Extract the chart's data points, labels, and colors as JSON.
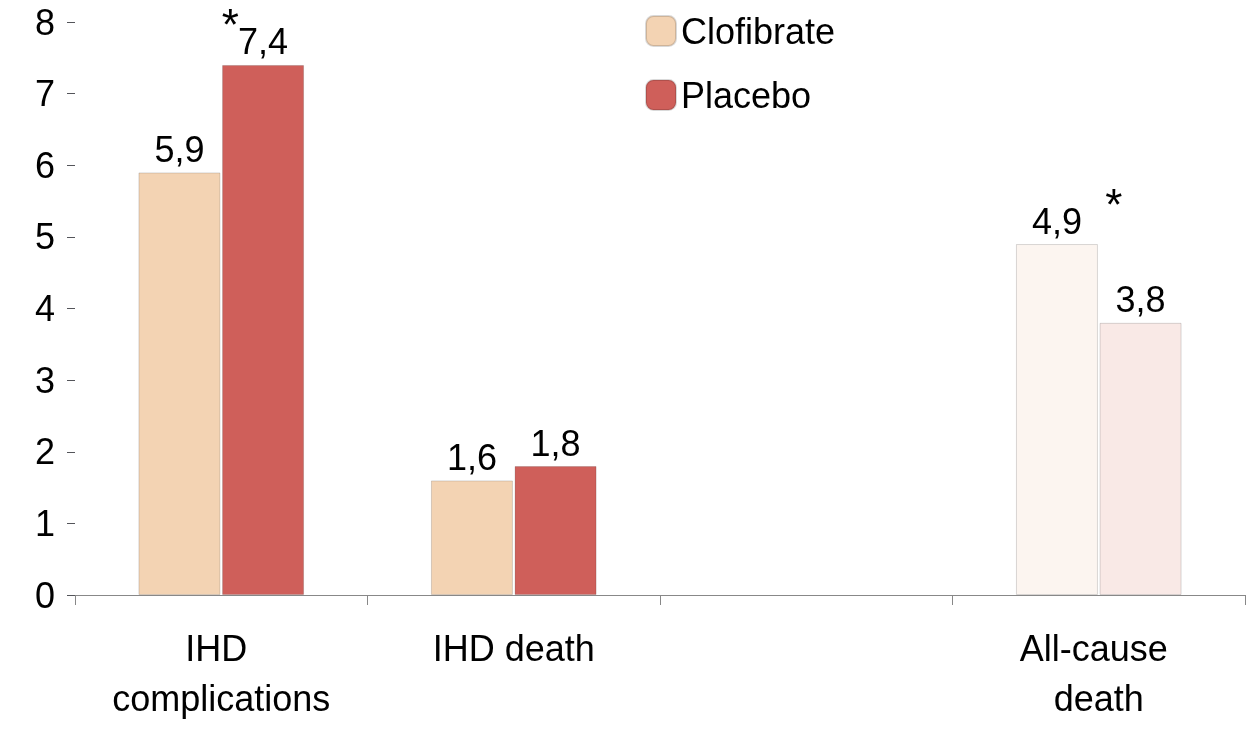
{
  "chart_data": {
    "type": "bar",
    "categories": [
      "IHD complications",
      "IHD death",
      null,
      "All-cause death"
    ],
    "series": [
      {
        "name": "Clofibrate",
        "color": "#f3d3b3",
        "colors": [
          "#f3d3b3",
          "#f3d3b3",
          null,
          "#fcf5f0"
        ],
        "values": [
          5.9,
          1.6,
          null,
          4.9
        ],
        "value_labels": [
          "5,9",
          "1,6",
          null,
          "4,9"
        ]
      },
      {
        "name": "Placebo",
        "color": "#cf5f5a",
        "colors": [
          "#cf5f5a",
          "#cf5f5a",
          null,
          "#f9e9e6"
        ],
        "values": [
          7.4,
          1.8,
          null,
          3.8
        ],
        "value_labels": [
          "7,4",
          "1,8",
          null,
          "3,8"
        ]
      }
    ],
    "ylim": [
      0,
      8
    ],
    "yticks": [
      0,
      1,
      2,
      3,
      4,
      5,
      6,
      7,
      8
    ],
    "grid": false,
    "legend": "top",
    "annotations": [
      "*",
      "*"
    ]
  }
}
